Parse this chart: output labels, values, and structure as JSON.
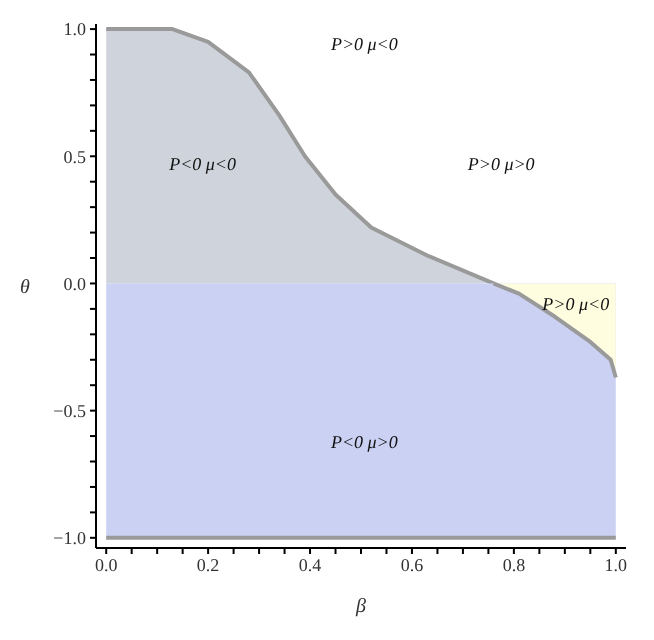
{
  "chart_data": {
    "type": "area",
    "xlabel": "β",
    "ylabel": "θ",
    "x": [
      0,
      0.13,
      0.2,
      0.28,
      0.34,
      0.39,
      0.45,
      0.52,
      0.63,
      0.76,
      0.81,
      0.88,
      0.95,
      0.99,
      1
    ],
    "series": [
      {
        "color": "#cfd4dc",
        "values": [
          1,
          1,
          0.95,
          0.83,
          0.66,
          0.5,
          0.35,
          0.22,
          0.11,
          0,
          null,
          null,
          null,
          null,
          null
        ]
      },
      {
        "color": "#cbd1f3",
        "values": [
          -1,
          -1,
          -1,
          -1,
          -1,
          -1,
          -1,
          -1,
          -1,
          -1,
          -1,
          -1,
          -1,
          -1,
          -1
        ]
      },
      {
        "color": "#fffde0",
        "values": [
          null,
          null,
          null,
          null,
          null,
          null,
          null,
          null,
          null,
          0,
          -0.04,
          -0.13,
          -0.23,
          -0.3,
          -0.37
        ]
      }
    ],
    "xlim": [
      -0.02,
      1.02
    ],
    "ylim": [
      -1.04,
      1.02
    ],
    "xticks": [
      {
        "value": 0,
        "label": "0.0"
      },
      {
        "value": 0.05,
        "label": null
      },
      {
        "value": 0.1,
        "label": null
      },
      {
        "value": 0.15,
        "label": null
      },
      {
        "value": 0.2,
        "label": "0.2"
      },
      {
        "value": 0.25,
        "label": null
      },
      {
        "value": 0.3,
        "label": null
      },
      {
        "value": 0.35,
        "label": null
      },
      {
        "value": 0.4,
        "label": "0.4"
      },
      {
        "value": 0.45,
        "label": null
      },
      {
        "value": 0.5,
        "label": null
      },
      {
        "value": 0.55,
        "label": null
      },
      {
        "value": 0.6,
        "label": "0.6"
      },
      {
        "value": 0.65,
        "label": null
      },
      {
        "value": 0.7,
        "label": null
      },
      {
        "value": 0.75,
        "label": null
      },
      {
        "value": 0.8,
        "label": "0.8"
      },
      {
        "value": 0.85,
        "label": null
      },
      {
        "value": 0.9,
        "label": null
      },
      {
        "value": 0.95,
        "label": null
      },
      {
        "value": 1,
        "label": "1.0"
      }
    ],
    "yticks": [
      {
        "value": -1,
        "label": "−1.0"
      },
      {
        "value": -0.9,
        "label": null
      },
      {
        "value": -0.8,
        "label": null
      },
      {
        "value": -0.7,
        "label": null
      },
      {
        "value": -0.6,
        "label": null
      },
      {
        "value": -0.5,
        "label": "−0.5"
      },
      {
        "value": -0.4,
        "label": null
      },
      {
        "value": -0.3,
        "label": null
      },
      {
        "value": -0.2,
        "label": null
      },
      {
        "value": -0.1,
        "label": null
      },
      {
        "value": 0,
        "label": "0.0"
      },
      {
        "value": 0.1,
        "label": null
      },
      {
        "value": 0.2,
        "label": null
      },
      {
        "value": 0.3,
        "label": null
      },
      {
        "value": 0.4,
        "label": null
      },
      {
        "value": 0.5,
        "label": "0.5"
      },
      {
        "value": 0.6,
        "label": null
      },
      {
        "value": 0.7,
        "label": null
      },
      {
        "value": 0.8,
        "label": null
      },
      {
        "value": 0.9,
        "label": null
      },
      {
        "value": 1,
        "label": "1.0"
      }
    ],
    "annotations": [
      "P>0 μ<0",
      "P<0 μ<0",
      "P>0 μ>0",
      "P>0 μ<0",
      "P<0 μ>0"
    ],
    "grid": false,
    "legend": false
  }
}
